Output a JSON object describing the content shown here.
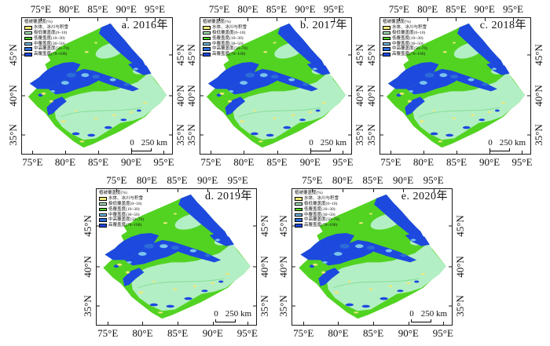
{
  "figure": {
    "panels": [
      {
        "label": "a. 2016年"
      },
      {
        "label": "b. 2017年"
      },
      {
        "label": "c. 2018年"
      },
      {
        "label": "d. 2019年"
      },
      {
        "label": "e. 2020年"
      }
    ],
    "legend": {
      "title": "植被覆盖度(%)",
      "items": [
        {
          "label": "水体、冰川与积雪",
          "color": "#EDE878"
        },
        {
          "label": "极低覆盖度(0~10)",
          "color": "#B3EFC5"
        },
        {
          "label": "低覆盖度(10~30)",
          "color": "#52D322"
        },
        {
          "label": "中覆盖度(30~50)",
          "color": "#7AC4EE"
        },
        {
          "label": "中高覆盖度(50~70)",
          "color": "#2C6CD8"
        },
        {
          "label": "高覆盖度(70~100)",
          "color": "#1D49DF"
        }
      ]
    },
    "axes": {
      "lon_labels": [
        "75°E",
        "80°E",
        "85°E",
        "90°E",
        "95°E"
      ],
      "lat_labels": [
        "45°N",
        "40°N",
        "35°N"
      ],
      "lon_top_pct": [
        12.5,
        31.5,
        50.5,
        69.5,
        88.5
      ],
      "lon_bottom_pct": [
        7,
        28.8,
        50.8,
        72.8,
        94.5
      ],
      "lat_pct": [
        27,
        57,
        86
      ]
    },
    "scalebar": {
      "zero": "0",
      "label": "250 km"
    }
  }
}
